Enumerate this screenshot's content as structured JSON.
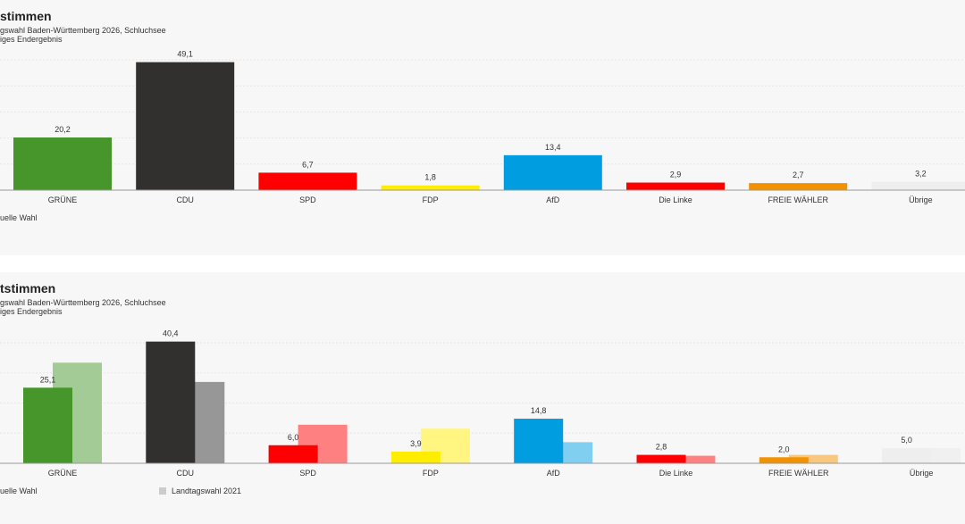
{
  "chart_data": [
    {
      "type": "bar",
      "title": "stimmen",
      "subtitle": "gswahl Baden-Württemberg 2026, Schluchsee",
      "subtitle2": "iges Endergebnis",
      "categories": [
        "GRÜNE",
        "CDU",
        "SPD",
        "FDP",
        "AfD",
        "Die Linke",
        "FREIE WÄHLER",
        "Übrige"
      ],
      "colors": [
        "#46962b",
        "#32302e",
        "#ff0000",
        "#ffed00",
        "#009ee0",
        "#ff0000",
        "#f39200",
        "#eeeeee"
      ],
      "series": [
        {
          "name": "uelle Wahl",
          "values": [
            20.2,
            49.1,
            6.7,
            1.8,
            13.4,
            2.9,
            2.7,
            3.2
          ],
          "labels": [
            "20,2",
            "49,1",
            "6,7",
            "1,8",
            "13,4",
            "2,9",
            "2,7",
            "3,2"
          ]
        }
      ],
      "ylim": [
        0,
        50
      ],
      "grid": true,
      "legend": "bottom-left"
    },
    {
      "type": "bar",
      "title": "tstimmen",
      "subtitle": "gswahl Baden-Württemberg 2026, Schluchsee",
      "subtitle2": "iges Endergebnis",
      "categories": [
        "GRÜNE",
        "CDU",
        "SPD",
        "FDP",
        "AfD",
        "Die Linke",
        "FREIE WÄHLER",
        "Übrige"
      ],
      "colors": [
        "#46962b",
        "#32302e",
        "#ff0000",
        "#ffed00",
        "#009ee0",
        "#ff0000",
        "#f39200",
        "#eeeeee"
      ],
      "prev_colors": [
        "#a2cb95",
        "#989797",
        "#ff8080",
        "#fff580",
        "#80cef0",
        "#ff8080",
        "#f9c880",
        "#f0f0f0"
      ],
      "series": [
        {
          "name": "uelle Wahl",
          "values": [
            25.1,
            40.4,
            6.0,
            3.9,
            14.8,
            2.8,
            2.0,
            5.0
          ],
          "labels": [
            "25,1",
            "40,4",
            "6,0",
            "3,9",
            "14,8",
            "2,8",
            "2,0",
            "5,0"
          ]
        },
        {
          "name": "Landtagswahl 2021",
          "values": [
            33.4,
            27.0,
            12.8,
            11.5,
            7.0,
            2.5,
            2.8,
            5.0
          ]
        }
      ],
      "ylim": [
        0,
        40
      ],
      "grid": true,
      "legend": "bottom-left"
    }
  ]
}
